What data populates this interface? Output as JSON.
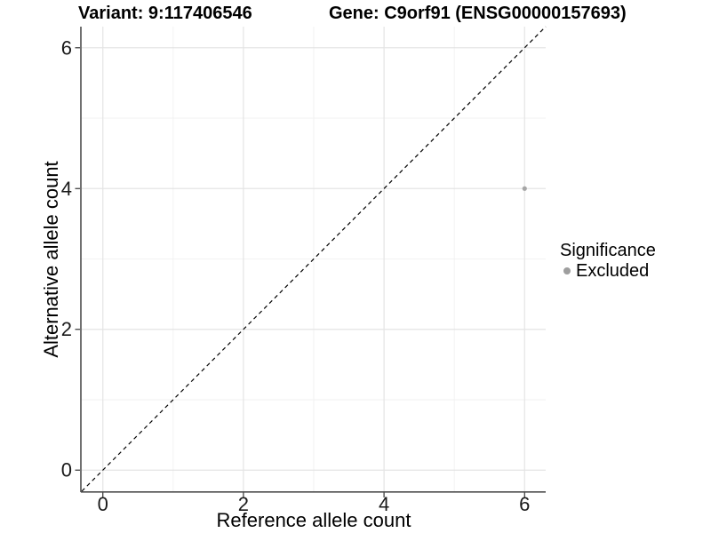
{
  "chart_data": {
    "type": "scatter",
    "title_left": "Variant: 9:117406546",
    "title_right": "Gene: C9orf91 (ENSG00000157693)",
    "xlabel": "Reference allele count",
    "ylabel": "Alternative allele count",
    "xlim": [
      -0.3,
      6.3
    ],
    "ylim": [
      -0.3,
      6.3
    ],
    "xticks": [
      0,
      2,
      4,
      6
    ],
    "yticks": [
      0,
      2,
      4,
      6
    ],
    "xminor": [
      1,
      3,
      5
    ],
    "yminor": [
      1,
      3,
      5
    ],
    "grid": "major and minor gridlines on white panel",
    "legend_position": "right, middle",
    "reference_line": {
      "kind": "abline",
      "slope": 1,
      "intercept": 0,
      "linetype": "dashed",
      "color": "#000000"
    },
    "series": [
      {
        "name": "Excluded",
        "marker": "circle",
        "color": "#a6a6a6",
        "points": [
          {
            "x": 6,
            "y": 4
          }
        ]
      }
    ],
    "legend": {
      "title": "Significance",
      "entries": [
        {
          "label": "Excluded",
          "color": "#9e9e9e"
        }
      ]
    },
    "style": {
      "panel_bg": "#ffffff",
      "grid_major_color": "#e4e4e4",
      "grid_minor_color": "#f2f2f2",
      "axis_line_color": "#4d4d4d",
      "tick_color": "#333333",
      "tick_label_color": "#1a1a1a"
    }
  }
}
